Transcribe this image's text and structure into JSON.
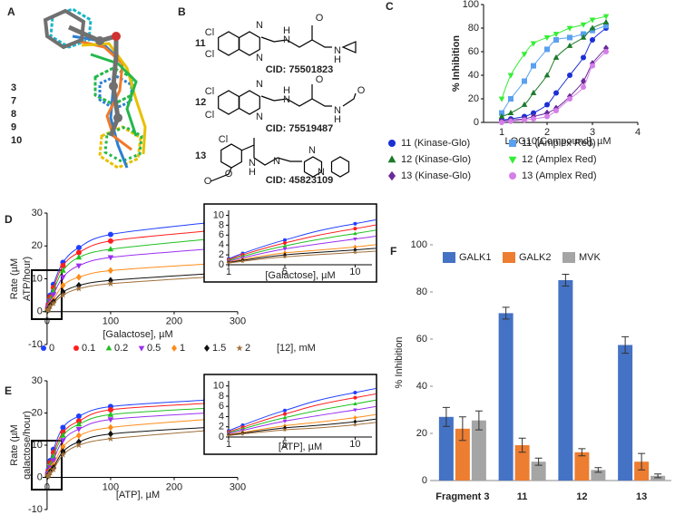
{
  "panel_a": {
    "panel_label": "A",
    "labels": [
      {
        "text": "3",
        "color": "#7f7f7f"
      },
      {
        "text": "7",
        "color": "#22b84a"
      },
      {
        "text": "8",
        "color": "#2a7fd4"
      },
      {
        "text": "9",
        "color": "#e8c000"
      },
      {
        "text": "10",
        "color": "#f07a2a"
      }
    ]
  },
  "panel_b": {
    "panel_label": "B",
    "compounds": [
      {
        "label": "11",
        "cid": "CID: 75501823",
        "atoms": [
          "Cl",
          "Cl",
          "N",
          "N",
          "N",
          "H",
          "O",
          "N",
          "H"
        ]
      },
      {
        "label": "12",
        "cid": "CID: 75519487",
        "atoms": [
          "Cl",
          "Cl",
          "N",
          "N",
          "N",
          "H",
          "O",
          "N",
          "H",
          "O"
        ]
      },
      {
        "label": "13",
        "cid": "CID: 45823109",
        "atoms": [
          "Cl",
          "O",
          "N",
          "H",
          "N",
          "N",
          "N",
          "O"
        ]
      }
    ]
  },
  "chart_data": [
    {
      "type": "scatter",
      "panel_label": "C",
      "x_label": "LOG10[Compound], µM",
      "y_label": "% Inhibition",
      "xlim": [
        0.6,
        4
      ],
      "xticks": [
        1,
        2,
        3,
        4
      ],
      "ylim": [
        0,
        100
      ],
      "yticks": [
        0,
        20,
        40,
        60,
        80,
        100
      ],
      "x": [
        1.0,
        1.2,
        1.5,
        1.7,
        2.0,
        2.2,
        2.5,
        2.8,
        3.0,
        3.3
      ],
      "series": [
        {
          "name": "11 (Kinase-Glo)",
          "color": "#1a2fd6",
          "marker": "circle",
          "values": [
            2,
            3,
            5,
            8,
            15,
            25,
            40,
            55,
            70,
            80
          ]
        },
        {
          "name": "11 (Amplex Red)",
          "color": "#5aa0f0",
          "marker": "square",
          "values": [
            8,
            20,
            35,
            48,
            62,
            70,
            72,
            75,
            78,
            82
          ]
        },
        {
          "name": "12 (Kinase-Glo)",
          "color": "#1c7a2a",
          "marker": "triangle",
          "values": [
            5,
            8,
            15,
            25,
            40,
            55,
            65,
            72,
            80,
            85
          ]
        },
        {
          "name": "12 (Amplex Red)",
          "color": "#33ee33",
          "marker": "tri-down",
          "values": [
            20,
            40,
            58,
            67,
            72,
            75,
            80,
            83,
            87,
            90
          ]
        },
        {
          "name": "13 (Kinase-Glo)",
          "color": "#6a2a9a",
          "marker": "diamond",
          "values": [
            1,
            2,
            3,
            5,
            8,
            12,
            22,
            35,
            50,
            63
          ]
        },
        {
          "name": "13 (Amplex Red)",
          "color": "#d57ee8",
          "marker": "circle",
          "values": [
            0,
            1,
            2,
            3,
            5,
            10,
            20,
            30,
            48,
            60
          ]
        }
      ]
    },
    {
      "type": "scatter",
      "panel_label": "D",
      "x_label": "[Galactose], µM",
      "y_label": [
        "Rate (µM",
        "ATP/hour)"
      ],
      "xlim": [
        -7,
        300
      ],
      "xticks": [
        0,
        100,
        200,
        300
      ],
      "ylim": [
        -10,
        30
      ],
      "yticks": [
        -10,
        0,
        10,
        20,
        30
      ],
      "x": [
        1,
        2,
        5,
        10,
        25,
        50,
        100,
        250
      ],
      "legend_title": "[12], mM",
      "series": [
        {
          "name": "0",
          "color": "#1f3fff",
          "marker": "circle",
          "values": [
            1.2,
            2.3,
            5,
            8.3,
            15,
            19.5,
            23.5,
            27
          ]
        },
        {
          "name": "0.1",
          "color": "#ff1f1f",
          "marker": "circle",
          "values": [
            1,
            2,
            4.4,
            7.3,
            14,
            18,
            21.5,
            24.5
          ]
        },
        {
          "name": "0.2",
          "color": "#20c020",
          "marker": "triangle",
          "values": [
            0.9,
            1.7,
            3.8,
            6.3,
            12.5,
            16.5,
            19,
            22
          ]
        },
        {
          "name": "0.5",
          "color": "#9a2ff0",
          "marker": "tri-down",
          "values": [
            0.7,
            1.4,
            3.2,
            5.2,
            10.5,
            14,
            16.5,
            19
          ]
        },
        {
          "name": "1",
          "color": "#ff8c1a",
          "marker": "diamond",
          "values": [
            0.55,
            1.1,
            2.4,
            3.6,
            8,
            10.5,
            12.5,
            14.5
          ]
        },
        {
          "name": "1.5",
          "color": "#111111",
          "marker": "diamond",
          "values": [
            0.45,
            0.9,
            2,
            3,
            6,
            8,
            9.5,
            11.5
          ]
        },
        {
          "name": "2",
          "color": "#a0703a",
          "marker": "star",
          "values": [
            0.35,
            0.7,
            1.6,
            2.5,
            5,
            7,
            8.5,
            10.5
          ]
        }
      ],
      "inset": {
        "x_label": "[Galactose], µM",
        "xlim": [
          1,
          11.2
        ],
        "xticks": [
          1,
          5,
          10
        ],
        "ylim": [
          0,
          11
        ],
        "yticks": [
          0,
          2,
          4,
          6,
          8,
          10
        ]
      }
    },
    {
      "type": "scatter",
      "panel_label": "E",
      "x_label": "[ATP], µM",
      "y_label": [
        "Rate (µM",
        "galactose/hour)"
      ],
      "xlim": [
        -7,
        300
      ],
      "xticks": [
        0,
        100,
        200,
        300
      ],
      "ylim": [
        -10,
        30
      ],
      "yticks": [
        -10,
        0,
        10,
        20,
        30
      ],
      "x": [
        1,
        2,
        5,
        10,
        25,
        50,
        100,
        250
      ],
      "series": [
        {
          "color": "#1f3fff",
          "marker": "circle",
          "values": [
            1.2,
            2.3,
            5.2,
            8.7,
            15.5,
            19,
            22,
            24
          ]
        },
        {
          "color": "#ff1f1f",
          "marker": "circle",
          "values": [
            1,
            1.9,
            4.5,
            7.7,
            14,
            17.5,
            21,
            23
          ]
        },
        {
          "color": "#20c020",
          "marker": "triangle",
          "values": [
            0.85,
            1.6,
            3.8,
            6.5,
            13,
            16.5,
            19.5,
            21.5
          ]
        },
        {
          "color": "#9a2ff0",
          "marker": "tri-down",
          "values": [
            0.7,
            1.3,
            3.1,
            5.3,
            11.5,
            15,
            18,
            20
          ]
        },
        {
          "color": "#ff8c1a",
          "marker": "diamond",
          "values": [
            0.5,
            0.9,
            2.2,
            3.8,
            9.5,
            13,
            15.5,
            18
          ]
        },
        {
          "color": "#111111",
          "marker": "diamond",
          "values": [
            0.4,
            0.75,
            1.8,
            3,
            8,
            11,
            13.5,
            15.5
          ]
        },
        {
          "color": "#a0703a",
          "marker": "star",
          "values": [
            0.3,
            0.6,
            1.4,
            2.4,
            7,
            10,
            12,
            14.5
          ]
        }
      ],
      "inset": {
        "x_label": "[ATP], µM",
        "xlim": [
          1,
          11.2
        ],
        "xticks": [
          1,
          5,
          10
        ],
        "ylim": [
          0,
          11
        ],
        "yticks": [
          0,
          2,
          4,
          6,
          8,
          10
        ]
      }
    },
    {
      "type": "bar",
      "panel_label": "F",
      "y_label": "% Inhibition",
      "categories": [
        "Fragment 3",
        "11",
        "12",
        "13"
      ],
      "ylim": [
        0,
        100
      ],
      "yticks": [
        0,
        20,
        40,
        60,
        80,
        100
      ],
      "series": [
        {
          "name": "GALK1",
          "color": "#4472c4",
          "values": [
            27,
            71,
            85,
            57.5
          ],
          "errors": [
            4,
            2.5,
            2.5,
            3.5
          ]
        },
        {
          "name": "GALK2",
          "color": "#ed7d31",
          "values": [
            22,
            15,
            12,
            8
          ],
          "errors": [
            5,
            3,
            1.5,
            3.5
          ]
        },
        {
          "name": "MVK",
          "color": "#a5a5a5",
          "values": [
            25.5,
            8,
            4.5,
            2
          ],
          "errors": [
            4,
            1.5,
            1,
            0.8
          ]
        }
      ]
    }
  ]
}
